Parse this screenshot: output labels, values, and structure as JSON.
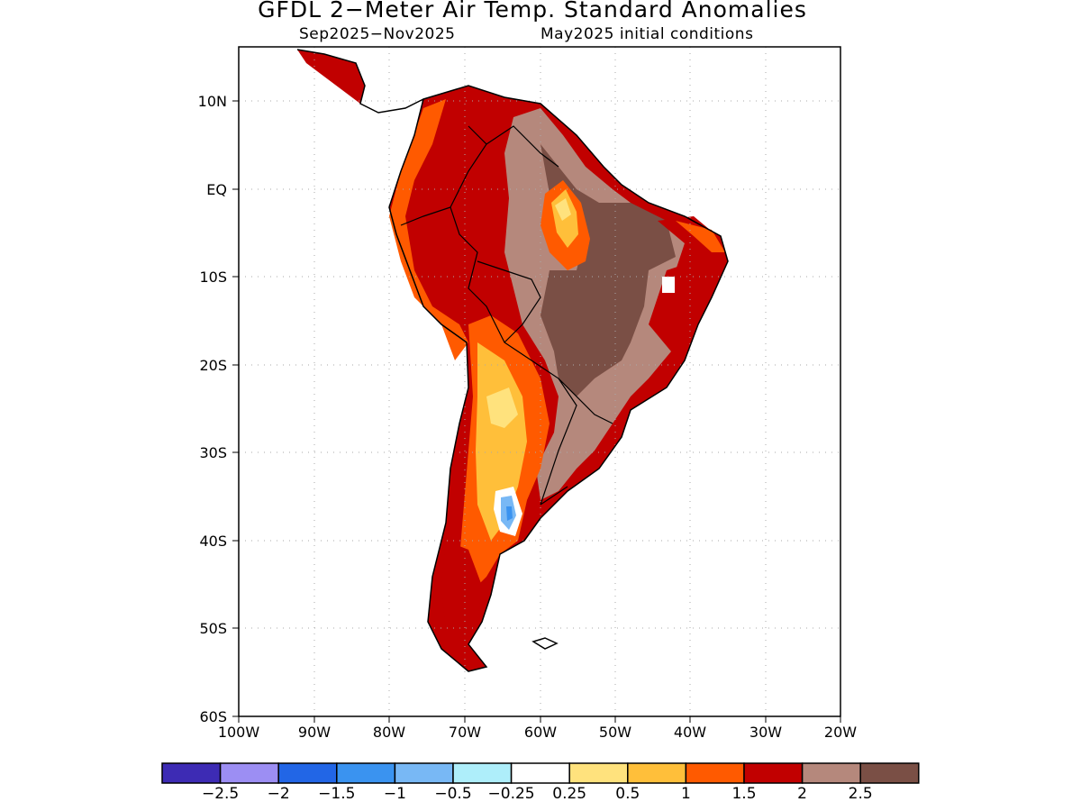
{
  "title": "GFDL 2−Meter Air Temp. Standard Anomalies",
  "subtitle_period": "Sep2025−Nov2025",
  "subtitle_init": "May2025 initial conditions",
  "lat_labels": [
    "10N",
    "EQ",
    "10S",
    "20S",
    "30S",
    "40S",
    "50S",
    "60S"
  ],
  "lon_labels": [
    "100W",
    "90W",
    "80W",
    "70W",
    "60W",
    "50W",
    "40W",
    "30W",
    "20W"
  ],
  "colorbar": {
    "colors": [
      "#3d2bb4",
      "#9c8ef3",
      "#2266e6",
      "#3a93f0",
      "#78b8f5",
      "#aeeefa",
      "#ffffff",
      "#ffe27d",
      "#ffbf3a",
      "#ff5a00",
      "#c10000",
      "#b5887c",
      "#7a4f45"
    ],
    "labels": [
      "−2.5",
      "−2",
      "−1.5",
      "−1",
      "−0.5",
      "−0.25",
      "0.25",
      "0.5",
      "1",
      "1.5",
      "2",
      "2.5"
    ]
  }
}
